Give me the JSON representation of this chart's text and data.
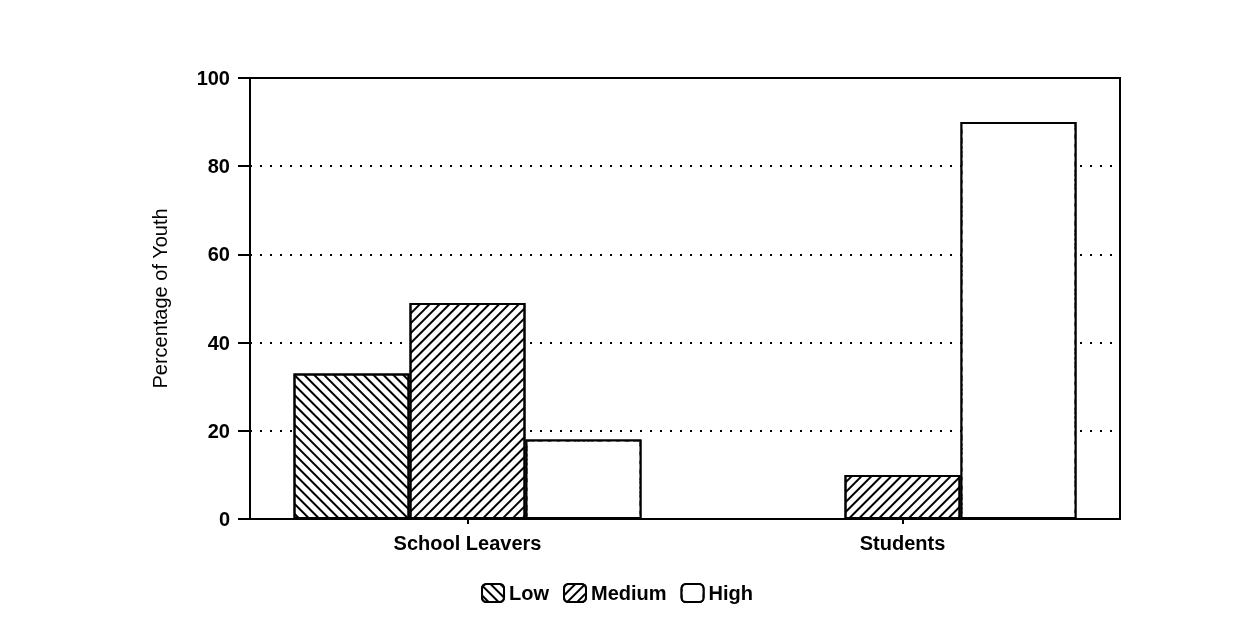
{
  "chart_data": {
    "type": "bar",
    "ylabel": "Percentage of Youth",
    "categories": [
      "School Leavers",
      "Students"
    ],
    "series": [
      {
        "name": "Low",
        "color": "#000000",
        "values": [
          33,
          0
        ]
      },
      {
        "name": "Medium",
        "color": "#000000",
        "values": [
          49,
          10
        ]
      },
      {
        "name": "High",
        "color": "#000000",
        "values": [
          18,
          90
        ]
      }
    ],
    "ylim": [
      0,
      100
    ],
    "yticks": [
      0,
      20,
      40,
      60,
      80,
      100
    ],
    "grid": "y",
    "legend": "bottom"
  }
}
